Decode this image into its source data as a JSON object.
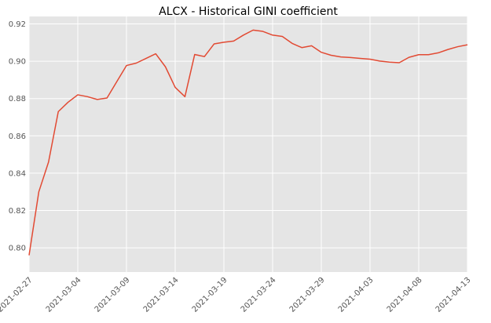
{
  "chart_data": {
    "type": "line",
    "title": "ALCX - Historical GINI coefficient",
    "xlabel": "",
    "ylabel": "",
    "xlim": [
      "2021-02-27",
      "2021-04-13"
    ],
    "ylim": [
      0.787,
      0.924
    ],
    "grid": true,
    "x_ticks": [
      "2021-02-27",
      "2021-03-04",
      "2021-03-09",
      "2021-03-14",
      "2021-03-19",
      "2021-03-24",
      "2021-03-29",
      "2021-04-03",
      "2021-04-08",
      "2021-04-13"
    ],
    "y_ticks": [
      "0.80",
      "0.82",
      "0.84",
      "0.86",
      "0.88",
      "0.90",
      "0.92"
    ],
    "y_tick_values": [
      0.8,
      0.82,
      0.84,
      0.86,
      0.88,
      0.9,
      0.92
    ],
    "series": [
      {
        "color": "#E24A33",
        "x": [
          "2021-02-27",
          "2021-02-28",
          "2021-03-01",
          "2021-03-02",
          "2021-03-03",
          "2021-03-04",
          "2021-03-05",
          "2021-03-06",
          "2021-03-07",
          "2021-03-08",
          "2021-03-09",
          "2021-03-10",
          "2021-03-11",
          "2021-03-12",
          "2021-03-13",
          "2021-03-14",
          "2021-03-15",
          "2021-03-16",
          "2021-03-17",
          "2021-03-18",
          "2021-03-19",
          "2021-03-20",
          "2021-03-21",
          "2021-03-22",
          "2021-03-23",
          "2021-03-24",
          "2021-03-25",
          "2021-03-26",
          "2021-03-27",
          "2021-03-28",
          "2021-03-29",
          "2021-03-30",
          "2021-03-31",
          "2021-04-01",
          "2021-04-02",
          "2021-04-03",
          "2021-04-04",
          "2021-04-05",
          "2021-04-06",
          "2021-04-07",
          "2021-04-08",
          "2021-04-09",
          "2021-04-10",
          "2021-04-11",
          "2021-04-12",
          "2021-04-13"
        ],
        "y": [
          0.796,
          0.83,
          0.846,
          0.873,
          0.878,
          0.882,
          0.881,
          0.8795,
          0.8803,
          0.889,
          0.8977,
          0.899,
          0.9015,
          0.904,
          0.897,
          0.886,
          0.881,
          0.9036,
          0.9025,
          0.9093,
          0.9102,
          0.9108,
          0.914,
          0.9167,
          0.916,
          0.914,
          0.9133,
          0.9096,
          0.9073,
          0.9083,
          0.9048,
          0.9032,
          0.9023,
          0.902,
          0.9015,
          0.9011,
          0.9001,
          0.8995,
          0.8992,
          0.9021,
          0.9035,
          0.9035,
          0.9045,
          0.9063,
          0.9078,
          0.9088
        ]
      }
    ]
  }
}
